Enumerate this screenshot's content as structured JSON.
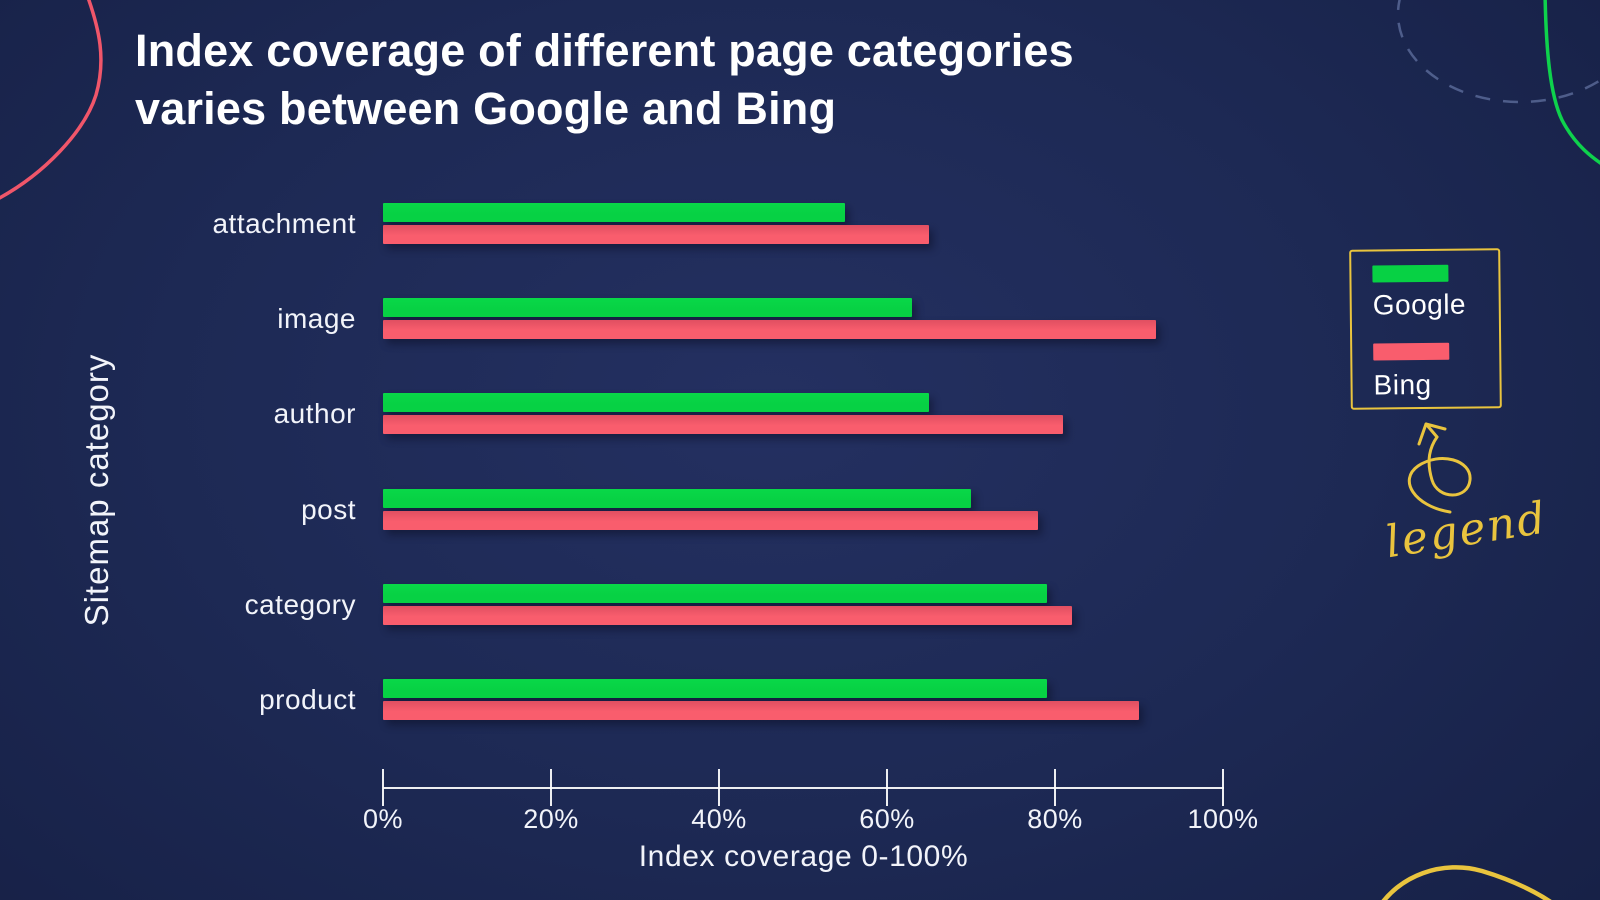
{
  "title": {
    "line1": "Index coverage of different page categories",
    "line2": "varies between Google and Bing"
  },
  "chart_data": {
    "type": "bar",
    "orientation": "horizontal",
    "categories": [
      "attachment",
      "image",
      "author",
      "post",
      "category",
      "product"
    ],
    "series": [
      {
        "name": "Google",
        "color": "#07d144",
        "values": [
          55,
          63,
          65,
          70,
          79,
          79
        ]
      },
      {
        "name": "Bing",
        "color": "#f95d6d",
        "values": [
          65,
          92,
          81,
          78,
          82,
          90
        ]
      }
    ],
    "title": "Index coverage of different page categories varies between Google and Bing",
    "xlabel": "Index coverage 0-100%",
    "ylabel": "Sitemap category",
    "xlim": [
      0,
      100
    ],
    "x_ticks": [
      "0%",
      "20%",
      "40%",
      "60%",
      "80%",
      "100%"
    ],
    "grid": false,
    "legend_position": "right"
  },
  "legend": {
    "annotation": "legend"
  },
  "colors": {
    "background": "#1d2954",
    "google": "#07d144",
    "bing": "#f95d6d",
    "yellow": "#e9c43e",
    "red_arc": "#f0566a",
    "green_arc": "#0ed24c",
    "dashed_arc": "#7a8cbe"
  }
}
